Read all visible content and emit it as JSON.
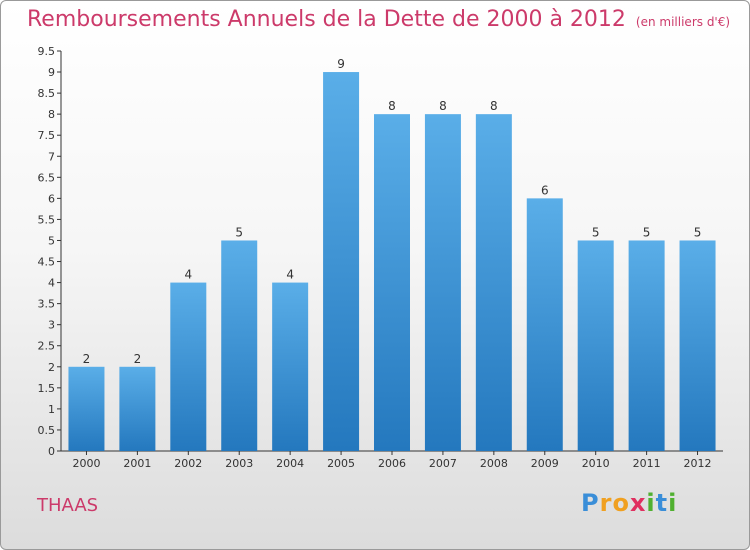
{
  "title": "Remboursements Annuels de la Dette de 2000 à 2012",
  "subtitle": "(en milliers d'€)",
  "commune": "THAAS",
  "logo": "Proxiti",
  "colors": {
    "title": "#cc3a6a",
    "bar_top": "#5aaee8",
    "bar_bottom": "#2478be",
    "axis": "#333333"
  },
  "chart_data": {
    "type": "bar",
    "title": "Remboursements Annuels de la Dette de 2000 à 2012",
    "subtitle": "(en milliers d'€)",
    "categories": [
      "2000",
      "2001",
      "2002",
      "2003",
      "2004",
      "2005",
      "2006",
      "2007",
      "2008",
      "2009",
      "2010",
      "2011",
      "2012"
    ],
    "values": [
      2,
      2,
      4,
      5,
      4,
      9,
      8,
      8,
      8,
      6,
      5,
      5,
      5
    ],
    "data_labels": [
      "2",
      "2",
      "4",
      "5",
      "4",
      "9",
      "8",
      "8",
      "8",
      "6",
      "5",
      "5",
      "5"
    ],
    "yticks": [
      "0",
      "0.5",
      "1",
      "1.5",
      "2",
      "2.5",
      "3",
      "3.5",
      "4",
      "4.5",
      "5",
      "5.5",
      "6",
      "6.5",
      "7",
      "7.5",
      "8",
      "8.5",
      "9",
      "9.5"
    ],
    "ylim": [
      0,
      9.5
    ],
    "grid": false,
    "xlabel": "",
    "ylabel": ""
  }
}
